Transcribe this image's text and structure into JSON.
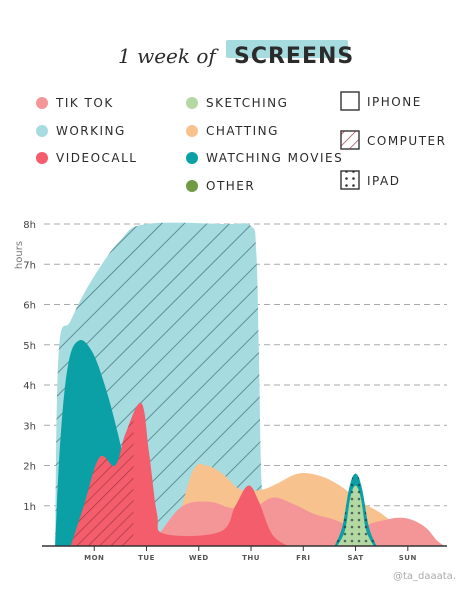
{
  "chart_data": {
    "type": "area",
    "title_prefix": "1 week of",
    "title_highlight": "SCREENS",
    "ylabel": "hours",
    "y_ticks": [
      "1h",
      "2h",
      "3h",
      "4h",
      "5h",
      "6h",
      "7h",
      "8h"
    ],
    "ylim": [
      0,
      8
    ],
    "x_ticks": [
      "MON",
      "TUE",
      "WED",
      "THU",
      "FRI",
      "SAT",
      "SUN"
    ],
    "xlim": [
      -1.0,
      6.75
    ],
    "grid": "horizontal dashed",
    "legend_position": "top",
    "series": [
      {
        "name": "WORKING",
        "color": "#a6dbdf",
        "device": "COMPUTER",
        "points": [
          [
            -0.75,
            0
          ],
          [
            -0.68,
            4.8
          ],
          [
            -0.45,
            5.6
          ],
          [
            -0.05,
            6.6
          ],
          [
            0.5,
            7.6
          ],
          [
            1.0,
            8.0
          ],
          [
            2.5,
            8.0
          ],
          [
            3.0,
            7.95
          ],
          [
            3.1,
            7.3
          ],
          [
            3.15,
            4.8
          ],
          [
            3.2,
            1.6
          ],
          [
            3.3,
            0
          ]
        ]
      },
      {
        "name": "CHATTING",
        "color": "#f7c28e",
        "device": "IPHONE",
        "points": [
          [
            1.3,
            0
          ],
          [
            1.6,
            0.7
          ],
          [
            1.9,
            1.9
          ],
          [
            2.15,
            2.0
          ],
          [
            2.45,
            1.8
          ],
          [
            2.8,
            1.4
          ],
          [
            3.2,
            1.4
          ],
          [
            3.5,
            1.55
          ],
          [
            3.9,
            1.8
          ],
          [
            4.3,
            1.75
          ],
          [
            4.7,
            1.5
          ],
          [
            5.1,
            1.1
          ],
          [
            5.5,
            0.8
          ],
          [
            5.85,
            0.4
          ],
          [
            6.1,
            0
          ]
        ]
      },
      {
        "name": "TIK TOK",
        "color": "#f49698",
        "device": "IPHONE",
        "points": [
          [
            1.1,
            0
          ],
          [
            1.3,
            0.4
          ],
          [
            1.7,
            1.0
          ],
          [
            2.2,
            1.1
          ],
          [
            2.6,
            0.95
          ],
          [
            3.0,
            0.9
          ],
          [
            3.4,
            1.2
          ],
          [
            3.8,
            1.05
          ],
          [
            4.2,
            0.8
          ],
          [
            4.6,
            0.65
          ],
          [
            5.0,
            0.45
          ],
          [
            5.4,
            0.6
          ],
          [
            5.9,
            0.7
          ],
          [
            6.3,
            0.5
          ],
          [
            6.55,
            0.15
          ],
          [
            6.7,
            0
          ]
        ]
      },
      {
        "name": "WATCHING MOVIES",
        "color": "#0aa0a6",
        "device": "IPAD",
        "points": [
          [
            -0.75,
            0
          ],
          [
            -0.65,
            2.6
          ],
          [
            -0.5,
            4.5
          ],
          [
            -0.3,
            5.1
          ],
          [
            -0.05,
            4.85
          ],
          [
            0.2,
            4.0
          ],
          [
            0.45,
            2.8
          ],
          [
            0.8,
            0.8
          ],
          [
            1.0,
            0
          ]
        ]
      },
      {
        "name": "VIDEOCALL",
        "color": "#f45d6b",
        "device": "COMPUTER",
        "points": [
          [
            -0.45,
            0
          ],
          [
            -0.2,
            1.0
          ],
          [
            0.1,
            2.2
          ],
          [
            0.4,
            2.0
          ],
          [
            0.6,
            2.8
          ],
          [
            0.9,
            3.55
          ],
          [
            1.05,
            2.3
          ],
          [
            1.2,
            0.8
          ],
          [
            1.35,
            0.3
          ],
          [
            2.4,
            0.35
          ],
          [
            2.7,
            1.0
          ],
          [
            2.95,
            1.5
          ],
          [
            3.15,
            1.1
          ],
          [
            3.4,
            0.3
          ],
          [
            3.7,
            0
          ]
        ]
      },
      {
        "name": "SKETCHING",
        "color": "#b3d8a2",
        "device": "IPAD",
        "points": [
          [
            4.65,
            0
          ],
          [
            4.8,
            0.4
          ],
          [
            4.9,
            1.2
          ],
          [
            5.0,
            1.5
          ],
          [
            5.1,
            1.2
          ],
          [
            5.2,
            0.4
          ],
          [
            5.35,
            0
          ]
        ]
      },
      {
        "name": "OTHER",
        "color": "#6f9a46",
        "device": "",
        "points": []
      }
    ],
    "device_legend": [
      "IPHONE",
      "COMPUTER",
      "IPAD"
    ],
    "credit": "@ta_daaata."
  }
}
